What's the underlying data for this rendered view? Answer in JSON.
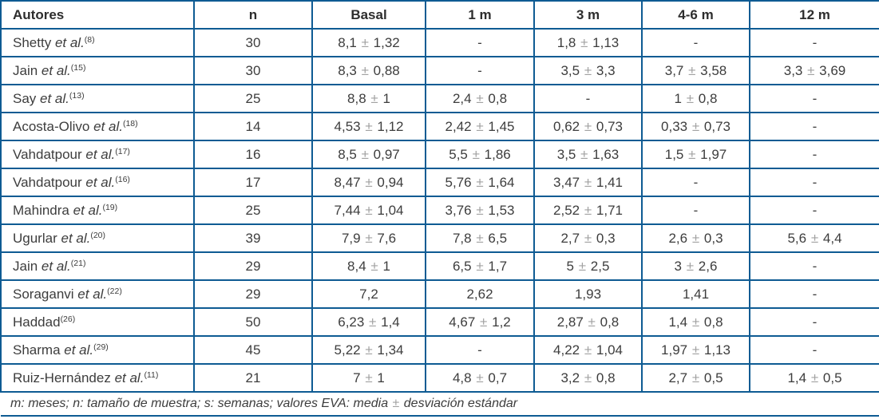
{
  "colors": {
    "border_blue": "#0e5b93",
    "text_dark": "#3d3d3d",
    "plusminus_gray": "#a2a2a2"
  },
  "table": {
    "columns": [
      "Autores",
      "n",
      "Basal",
      "1 m",
      "3 m",
      "4-6 m",
      "12 m"
    ],
    "rows": [
      {
        "author": {
          "name": "Shetty",
          "etal": "et al.",
          "ref": "(8)"
        },
        "values": [
          "30",
          "8,1 ± 1,32",
          "-",
          "1,8 ± 1,13",
          "-",
          "-"
        ]
      },
      {
        "author": {
          "name": "Jain",
          "etal": "et al.",
          "ref": "(15)"
        },
        "values": [
          "30",
          "8,3 ± 0,88",
          "-",
          "3,5 ± 3,3",
          "3,7 ± 3,58",
          "3,3 ± 3,69"
        ]
      },
      {
        "author": {
          "name": "Say",
          "etal": "et al.",
          "ref": "(13)"
        },
        "values": [
          "25",
          "8,8 ± 1",
          "2,4 ± 0,8",
          "-",
          "1 ± 0,8",
          "-"
        ]
      },
      {
        "author": {
          "name": "Acosta-Olivo",
          "etal": "et al.",
          "ref": "(18)"
        },
        "values": [
          "14",
          "4,53 ± 1,12",
          "2,42 ± 1,45",
          "0,62 ± 0,73",
          "0,33 ± 0,73",
          "-"
        ]
      },
      {
        "author": {
          "name": "Vahdatpour",
          "etal": "et al.",
          "ref": "(17)"
        },
        "values": [
          "16",
          "8,5 ± 0,97",
          "5,5 ± 1,86",
          "3,5 ± 1,63",
          "1,5 ± 1,97",
          "-"
        ]
      },
      {
        "author": {
          "name": "Vahdatpour",
          "etal": "et al.",
          "ref": "(16)"
        },
        "values": [
          "17",
          "8,47 ± 0,94",
          "5,76 ± 1,64",
          "3,47 ± 1,41",
          "-",
          "-"
        ]
      },
      {
        "author": {
          "name": "Mahindra",
          "etal": "et al.",
          "ref": "(19)"
        },
        "values": [
          "25",
          "7,44 ± 1,04",
          "3,76 ± 1,53",
          "2,52 ± 1,71",
          "-",
          "-"
        ]
      },
      {
        "author": {
          "name": "Ugurlar",
          "etal": "et al.",
          "ref": "(20)"
        },
        "values": [
          "39",
          "7,9 ± 7,6",
          "7,8 ± 6,5",
          "2,7 ± 0,3",
          "2,6 ± 0,3",
          "5,6 ± 4,4"
        ]
      },
      {
        "author": {
          "name": "Jain",
          "etal": "et al.",
          "ref": "(21)"
        },
        "values": [
          "29",
          "8,4 ± 1",
          "6,5 ± 1,7",
          "5 ± 2,5",
          "3 ± 2,6",
          "-"
        ]
      },
      {
        "author": {
          "name": "Soraganvi",
          "etal": "et al.",
          "ref": "(22)"
        },
        "values": [
          "29",
          "7,2",
          "2,62",
          "1,93",
          "1,41",
          "-"
        ]
      },
      {
        "author": {
          "name": "Haddad",
          "etal": "",
          "ref": "(26)"
        },
        "values": [
          "50",
          "6,23 ± 1,4",
          "4,67 ± 1,2",
          "2,87 ± 0,8",
          "1,4 ± 0,8",
          "-"
        ]
      },
      {
        "author": {
          "name": "Sharma",
          "etal": "et al.",
          "ref": "(29)"
        },
        "values": [
          "45",
          "5,22 ± 1,34",
          "-",
          "4,22 ± 1,04",
          "1,97 ± 1,13",
          "-"
        ]
      },
      {
        "author": {
          "name": "Ruiz-Hernández",
          "etal": "et al.",
          "ref": "(11)"
        },
        "values": [
          "21",
          "7 ± 1",
          "4,8 ± 0,7",
          "3,2 ± 0,8",
          "2,7 ± 0,5",
          "1,4 ± 0,5"
        ]
      }
    ],
    "footnote": "m: meses; n: tamaño de muestra; s: semanas; valores EVA: media ± desviación estándar"
  }
}
